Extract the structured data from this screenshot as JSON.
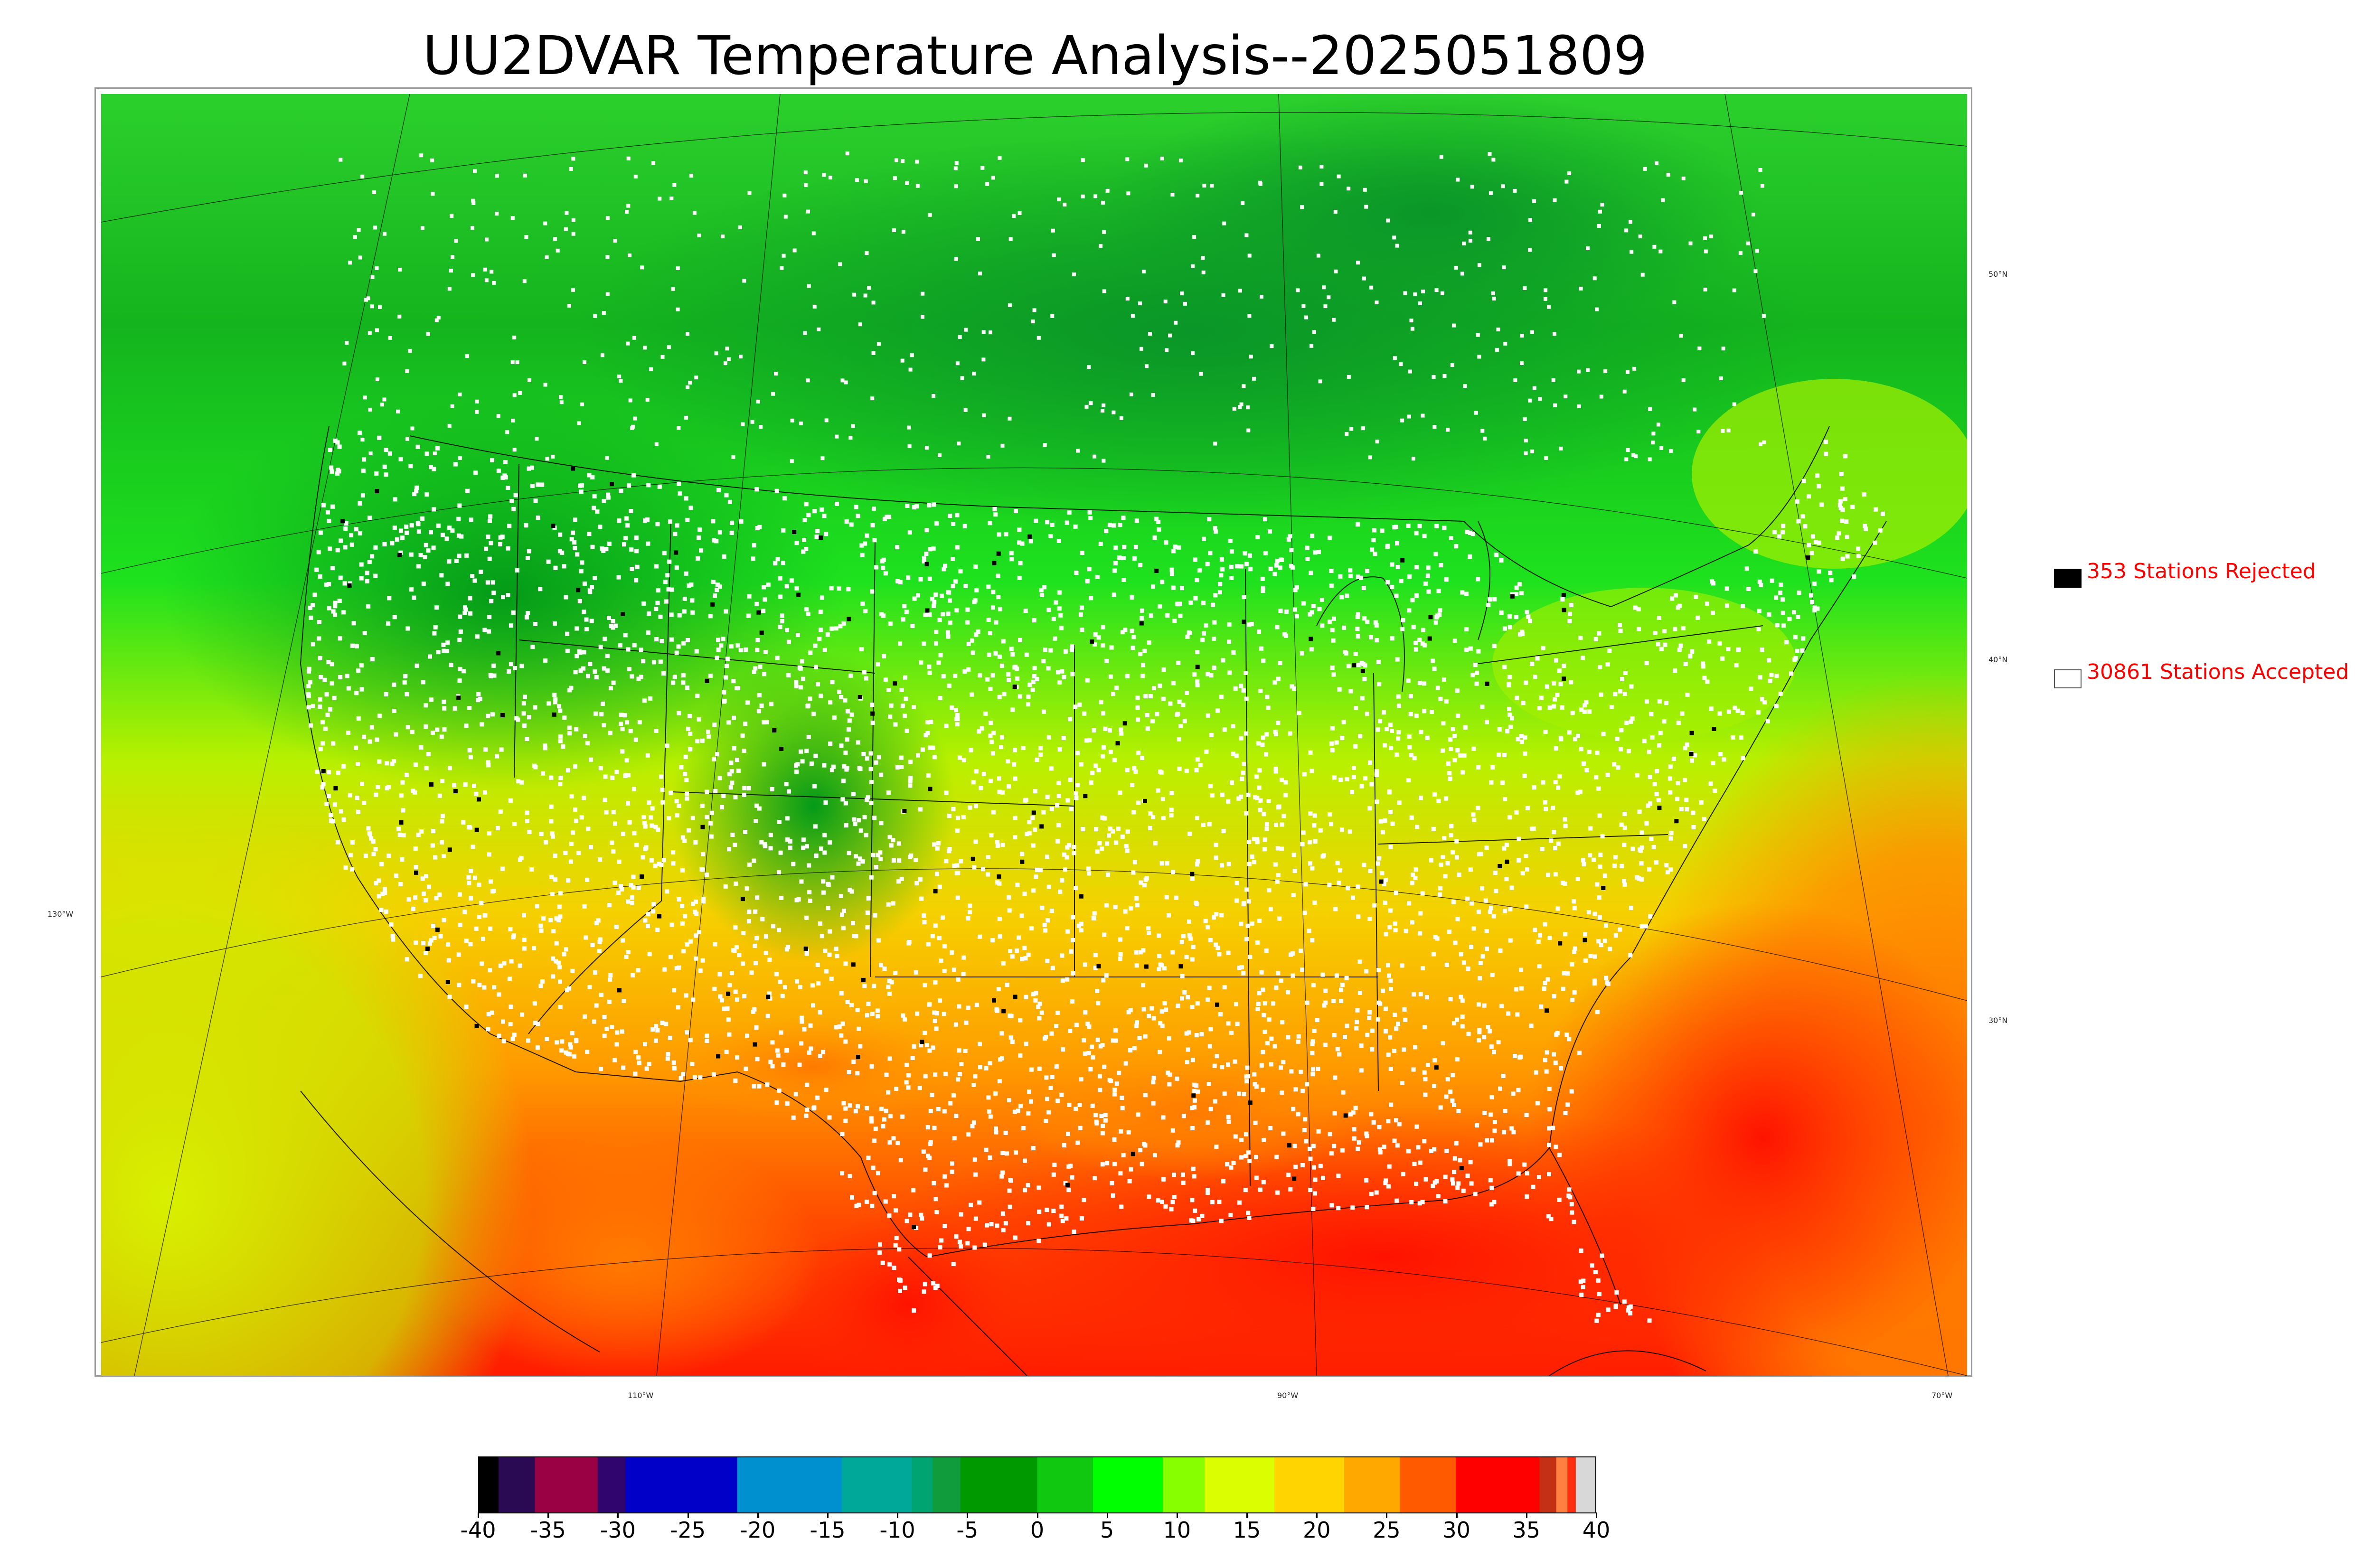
{
  "title": "UU2DVAR Temperature Analysis--2025051809",
  "map": {
    "longitude_labels": [
      "130°W",
      "110°W",
      "90°W",
      "70°W"
    ],
    "latitude_labels": [
      "50°N",
      "40°N",
      "30°N"
    ],
    "colors": {
      "cold_north": "#22c422",
      "dark_green": "#0c9a20",
      "mid_green": "#1ee61e",
      "light_green": "#8ef000",
      "yellow": "#d8f000",
      "orange_yellow": "#f6c800",
      "orange": "#ff9a00",
      "red_orange": "#ff5a00",
      "red": "#ff1600",
      "station_accepted": "#ffffff",
      "station_rejected": "#000000",
      "boundary_lines": "#000000"
    }
  },
  "legend": {
    "rejected": {
      "count": 353,
      "label": "353 Stations Rejected",
      "color": "#000000"
    },
    "accepted": {
      "count": 30861,
      "label": "30861 Stations Accepted",
      "color": "#ffffff"
    }
  },
  "colorbar": {
    "min": -40,
    "max": 40,
    "ticks": [
      "-40",
      "-35",
      "-30",
      "-25",
      "-20",
      "-15",
      "-10",
      "-5",
      "0",
      "5",
      "10",
      "15",
      "20",
      "25",
      "30",
      "35",
      "40"
    ],
    "segments": [
      {
        "from": -40,
        "to": -38.6,
        "color": "#000000"
      },
      {
        "from": -38.6,
        "to": -36,
        "color": "#2a0a52"
      },
      {
        "from": -36,
        "to": -31.5,
        "color": "#9a0044"
      },
      {
        "from": -31.5,
        "to": -29.5,
        "color": "#30056e"
      },
      {
        "from": -29.5,
        "to": -21.5,
        "color": "#0000c8"
      },
      {
        "from": -21.5,
        "to": -14,
        "color": "#0090d0"
      },
      {
        "from": -14,
        "to": -9,
        "color": "#00a89a"
      },
      {
        "from": -9,
        "to": -7.5,
        "color": "#00a470"
      },
      {
        "from": -7.5,
        "to": -5.5,
        "color": "#109c3c"
      },
      {
        "from": -5.5,
        "to": 0,
        "color": "#009a00"
      },
      {
        "from": 0,
        "to": 4,
        "color": "#11c811"
      },
      {
        "from": 4,
        "to": 9,
        "color": "#00ff00"
      },
      {
        "from": 9,
        "to": 12,
        "color": "#88ff00"
      },
      {
        "from": 12,
        "to": 17,
        "color": "#dcff00"
      },
      {
        "from": 17,
        "to": 22,
        "color": "#ffd400"
      },
      {
        "from": 22,
        "to": 26,
        "color": "#ffa800"
      },
      {
        "from": 26,
        "to": 30,
        "color": "#ff5a00"
      },
      {
        "from": 30,
        "to": 36,
        "color": "#ff0000"
      },
      {
        "from": 36,
        "to": 37.2,
        "color": "#c43014"
      },
      {
        "from": 37.2,
        "to": 38,
        "color": "#ff8040"
      },
      {
        "from": 38,
        "to": 38.6,
        "color": "#ff3010"
      },
      {
        "from": 38.6,
        "to": 40,
        "color": "#d8d8d8"
      }
    ]
  }
}
